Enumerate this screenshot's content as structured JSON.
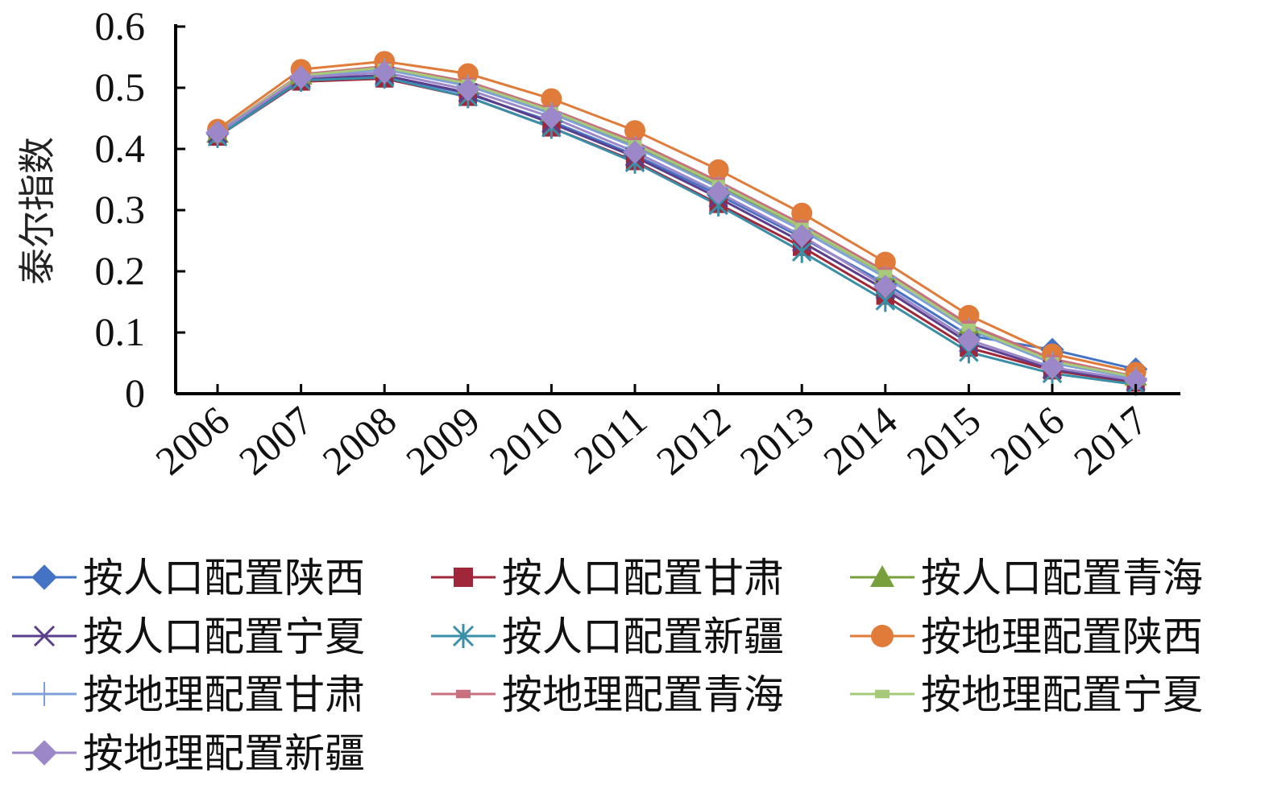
{
  "chart_data": {
    "type": "line",
    "title": "",
    "xlabel": "",
    "ylabel": "泰尔指数",
    "categories": [
      "2006",
      "2007",
      "2008",
      "2009",
      "2010",
      "2011",
      "2012",
      "2013",
      "2014",
      "2015",
      "2016",
      "2017"
    ],
    "y_ticks": [
      "0",
      "0.1",
      "0.2",
      "0.3",
      "0.4",
      "0.5",
      "0.6"
    ],
    "ylim": [
      0,
      0.6
    ],
    "grid": false,
    "legend_position": "bottom",
    "series": [
      {
        "name": "按人口配置陕西",
        "color": "#4472C4",
        "marker": "diamond",
        "values": [
          0.425,
          0.515,
          0.52,
          0.49,
          0.445,
          0.39,
          0.325,
          0.255,
          0.18,
          0.095,
          0.072,
          0.04
        ]
      },
      {
        "name": "按人口配置甘肃",
        "color": "#A0263A",
        "marker": "square",
        "values": [
          0.42,
          0.51,
          0.515,
          0.485,
          0.435,
          0.38,
          0.31,
          0.24,
          0.16,
          0.075,
          0.038,
          0.018
        ]
      },
      {
        "name": "按人口配置青海",
        "color": "#77A03C",
        "marker": "triangle",
        "values": [
          0.425,
          0.52,
          0.532,
          0.505,
          0.46,
          0.405,
          0.34,
          0.272,
          0.195,
          0.11,
          0.055,
          0.028
        ]
      },
      {
        "name": "按人口配置宁夏",
        "color": "#5B3E8C",
        "marker": "x",
        "values": [
          0.425,
          0.515,
          0.52,
          0.492,
          0.442,
          0.387,
          0.32,
          0.248,
          0.17,
          0.083,
          0.04,
          0.02
        ]
      },
      {
        "name": "按人口配置新疆",
        "color": "#3A8FA8",
        "marker": "star",
        "values": [
          0.42,
          0.512,
          0.517,
          0.485,
          0.435,
          0.378,
          0.308,
          0.232,
          0.152,
          0.068,
          0.033,
          0.015
        ]
      },
      {
        "name": "按地理配置陕西",
        "color": "#E07B39",
        "marker": "circle",
        "values": [
          0.432,
          0.53,
          0.543,
          0.523,
          0.482,
          0.43,
          0.366,
          0.295,
          0.215,
          0.128,
          0.065,
          0.035
        ]
      },
      {
        "name": "按地理配置甘肃",
        "color": "#7F9FD8",
        "marker": "plus",
        "values": [
          0.425,
          0.518,
          0.53,
          0.503,
          0.458,
          0.403,
          0.337,
          0.267,
          0.19,
          0.105,
          0.05,
          0.025
        ]
      },
      {
        "name": "按地理配置青海",
        "color": "#C8707E",
        "marker": "dash",
        "values": [
          0.428,
          0.522,
          0.535,
          0.51,
          0.465,
          0.412,
          0.347,
          0.277,
          0.2,
          0.113,
          0.057,
          0.028
        ]
      },
      {
        "name": "按地理配置宁夏",
        "color": "#A6C97A",
        "marker": "dash",
        "values": [
          0.428,
          0.52,
          0.533,
          0.507,
          0.462,
          0.408,
          0.343,
          0.273,
          0.196,
          0.108,
          0.053,
          0.027
        ]
      },
      {
        "name": "按地理配置新疆",
        "color": "#9C88C8",
        "marker": "diamond",
        "values": [
          0.427,
          0.517,
          0.525,
          0.497,
          0.452,
          0.395,
          0.329,
          0.258,
          0.175,
          0.088,
          0.043,
          0.022
        ]
      }
    ]
  }
}
